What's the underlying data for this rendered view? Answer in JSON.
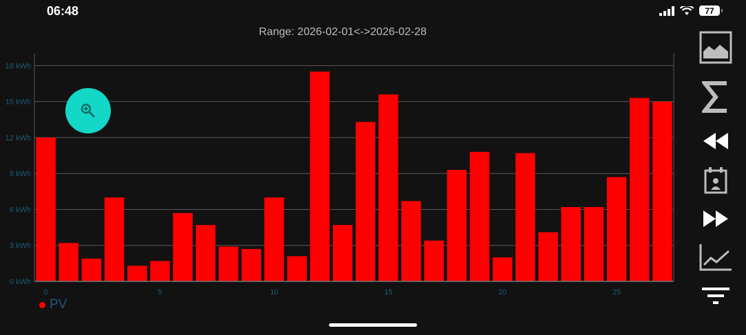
{
  "status_bar": {
    "time": "06:48",
    "battery": "77"
  },
  "header": {
    "range": "Range: 2026-02-01<->2026-02-28"
  },
  "legend": {
    "label": "PV",
    "color": "#ff0000"
  },
  "toolbar": {
    "icons": [
      "image-icon",
      "sum-icon",
      "rewind-icon",
      "calendar-icon",
      "fast-forward-icon",
      "trend-chart-icon",
      "filter-icon"
    ]
  },
  "chart_data": {
    "type": "bar",
    "x": [
      0,
      1,
      2,
      3,
      4,
      5,
      6,
      7,
      8,
      9,
      10,
      11,
      12,
      13,
      14,
      15,
      16,
      17,
      18,
      19,
      20,
      21,
      22,
      23,
      24,
      25,
      26,
      27
    ],
    "values": [
      12.0,
      3.2,
      1.9,
      7.0,
      1.3,
      1.7,
      5.7,
      4.7,
      2.9,
      2.7,
      7.0,
      2.1,
      17.5,
      4.7,
      13.3,
      15.6,
      6.7,
      3.4,
      9.3,
      10.8,
      2.0,
      10.7,
      4.1,
      6.2,
      6.2,
      8.7,
      15.3,
      15.0
    ],
    "series_name": "PV",
    "xticks": [
      0,
      5,
      10,
      15,
      20,
      25
    ],
    "yticks": [
      "0 kWh",
      "3 kWh",
      "6 kWh",
      "9 kWh",
      "12 kWh",
      "15 kWh",
      "18 kWh"
    ],
    "ylim": [
      0,
      19
    ],
    "xlim": [
      -0.5,
      27.5
    ],
    "color": "#ff0000",
    "grid": true,
    "legend_position": "bottom-left"
  }
}
